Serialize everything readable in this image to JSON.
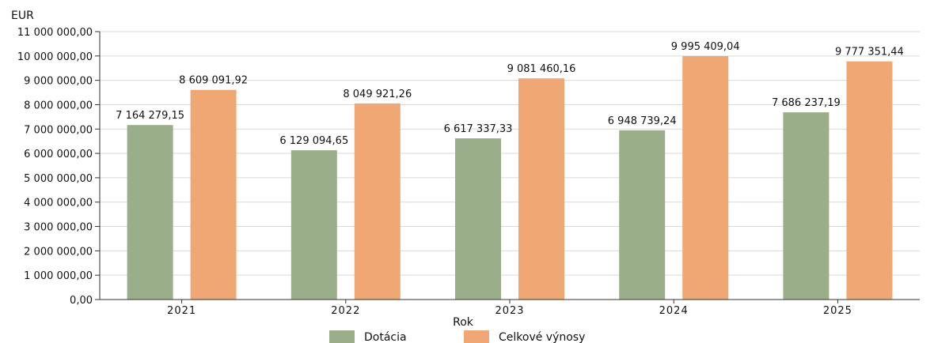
{
  "chart_data": {
    "type": "bar",
    "ylabel": "EUR",
    "xlabel": "Rok",
    "ylim": [
      0,
      11000000
    ],
    "grid": true,
    "legend_position": "bottom",
    "categories": [
      "2021",
      "2022",
      "2023",
      "2024",
      "2025"
    ],
    "y_ticks": [
      "0,00",
      "1 000 000,00",
      "2 000 000,00",
      "3 000 000,00",
      "4 000 000,00",
      "5 000 000,00",
      "6 000 000,00",
      "7 000 000,00",
      "8 000 000,00",
      "9 000 000,00",
      "10 000 000,00",
      "11 000 000,00"
    ],
    "series": [
      {
        "name": "Dotácia",
        "color": "#9bae8a",
        "values": [
          7164279.15,
          6129094.65,
          6617337.33,
          6948739.24,
          7686237.19
        ],
        "labels": [
          "7 164 279,15",
          "6 129 094,65",
          "6 617 337,33",
          "6 948 739,24",
          "7 686 237,19"
        ]
      },
      {
        "name": "Celkové výnosy",
        "color": "#efa774",
        "values": [
          8609091.92,
          8049921.26,
          9081460.16,
          9995409.04,
          9777351.44
        ],
        "labels": [
          "8 609 091,92",
          "8 049 921,26",
          "9 081 460,16",
          "9 995 409,04",
          "9 777 351,44"
        ]
      }
    ]
  }
}
